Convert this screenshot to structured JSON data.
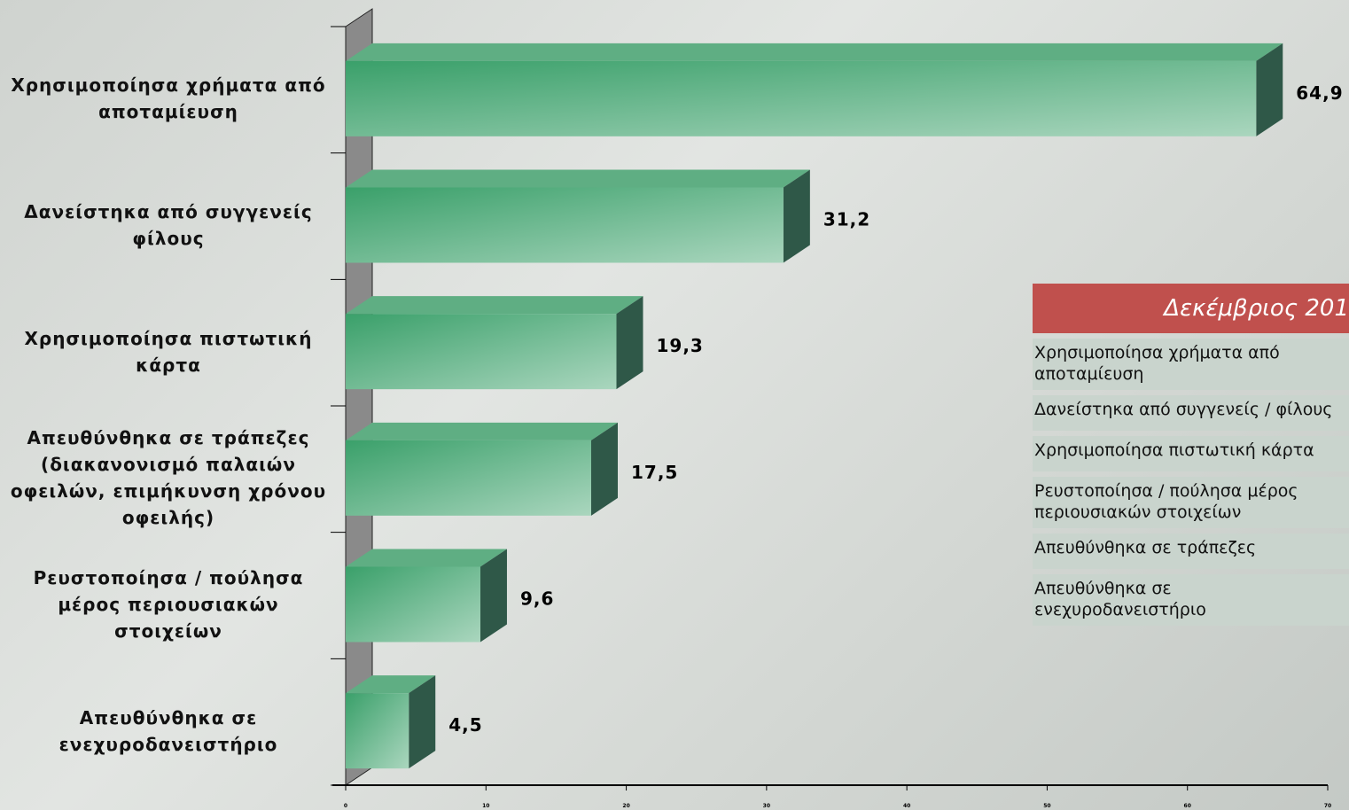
{
  "chart_data": {
    "type": "bar",
    "orientation": "horizontal",
    "categories": [
      "Χρησιμοποίησα χρήματα από αποταμίευση",
      "Δανείστηκα από συγγενείς φίλους",
      "Χρησιμοποίησα πιστωτική κάρτα",
      "Απευθύνθηκα σε τράπεζες (διακανονισμό παλαιών οφειλών, επιμήκυνση χρόνου οφειλής)",
      "Ρευστοποίησα / πούλησα μέρος περιουσιακών στοιχείων",
      "Απευθύνθηκα σε ενεχυροδανειστήριο"
    ],
    "values": [
      64.9,
      31.2,
      19.3,
      17.5,
      9.6,
      4.5
    ],
    "value_labels": [
      "64,9",
      "31,2",
      "19,3",
      "17,5",
      "9,6",
      "4,5"
    ],
    "color": "#3aa06a",
    "xlim": [
      0,
      70
    ],
    "xticks": [
      0,
      10,
      20,
      30,
      40,
      50,
      60,
      70
    ]
  },
  "side_table": {
    "title": "Δεκέμβριος 201",
    "rows": [
      "Χρησιμοποίησα χρήματα από αποταμίευση",
      "Δανείστηκα από συγγενείς / φίλους",
      "Χρησιμοποίησα πιστωτική κάρτα",
      "Ρευστοποίησα / πούλησα  μέρος περιουσιακών στοιχείων",
      "Απευθύνθηκα σε τράπεζες",
      "Απευθύνθηκα σε ενεχυροδανειστήριο"
    ]
  }
}
